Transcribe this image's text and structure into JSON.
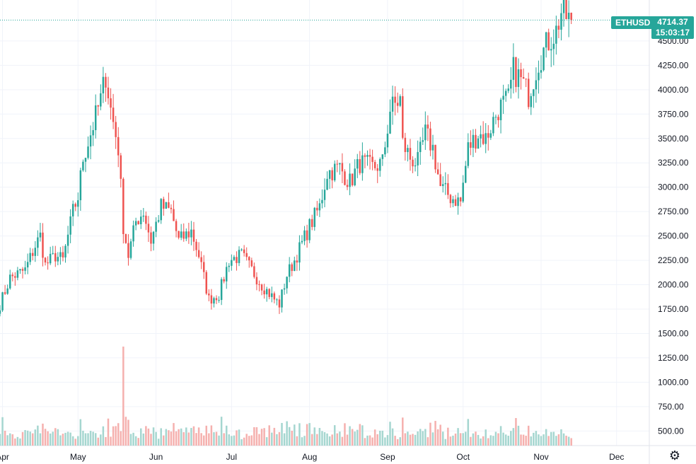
{
  "chart_data": {
    "type": "candlestick",
    "symbol": "ETHUSD",
    "last_price": "4714.37",
    "countdown": "15:03:17",
    "y_ticks": [
      "4500.00",
      "4250.00",
      "4000.00",
      "3750.00",
      "3500.00",
      "3250.00",
      "3000.00",
      "2750.00",
      "2500.00",
      "2250.00",
      "2000.00",
      "1750.00",
      "1500.00",
      "1250.00",
      "1000.00",
      "750.00",
      "500.00"
    ],
    "y_range": [
      350,
      4920
    ],
    "x_ticks": [
      "Apr",
      "May",
      "Jun",
      "Jul",
      "Aug",
      "Sep",
      "Oct",
      "Nov",
      "Dec"
    ],
    "start_date": "2021-03-31",
    "end_date": "2021-11-13",
    "x_range_dates": [
      "2021-03-31",
      "2021-12-14"
    ],
    "up_color": "#26a69a",
    "down_color": "#ef5350",
    "anchors": [
      [
        "2021-03-31",
        1800
      ],
      [
        "2021-04-04",
        2070
      ],
      [
        "2021-04-10",
        2150
      ],
      [
        "2021-04-14",
        2400
      ],
      [
        "2021-04-16",
        2500
      ],
      [
        "2021-04-18",
        2200
      ],
      [
        "2021-04-22",
        2300
      ],
      [
        "2021-04-25",
        2250
      ],
      [
        "2021-04-29",
        2750
      ],
      [
        "2021-05-01",
        2900
      ],
      [
        "2021-05-03",
        3300
      ],
      [
        "2021-05-06",
        3550
      ],
      [
        "2021-05-10",
        3900
      ],
      [
        "2021-05-12",
        4150
      ],
      [
        "2021-05-14",
        3800
      ],
      [
        "2021-05-17",
        3400
      ],
      [
        "2021-05-19",
        2600
      ],
      [
        "2021-05-21",
        2300
      ],
      [
        "2021-05-24",
        2650
      ],
      [
        "2021-05-27",
        2750
      ],
      [
        "2021-05-30",
        2450
      ],
      [
        "2021-06-03",
        2800
      ],
      [
        "2021-06-07",
        2750
      ],
      [
        "2021-06-10",
        2450
      ],
      [
        "2021-06-15",
        2550
      ],
      [
        "2021-06-18",
        2300
      ],
      [
        "2021-06-22",
        1850
      ],
      [
        "2021-06-26",
        1900
      ],
      [
        "2021-06-30",
        2250
      ],
      [
        "2021-07-05",
        2300
      ],
      [
        "2021-07-09",
        2150
      ],
      [
        "2021-07-13",
        2000
      ],
      [
        "2021-07-18",
        1850
      ],
      [
        "2021-07-20",
        1800
      ],
      [
        "2021-07-23",
        2100
      ],
      [
        "2021-07-26",
        2250
      ],
      [
        "2021-08-01",
        2600
      ],
      [
        "2021-08-05",
        2800
      ],
      [
        "2021-08-08",
        3150
      ],
      [
        "2021-08-13",
        3200
      ],
      [
        "2021-08-17",
        3050
      ],
      [
        "2021-08-21",
        3250
      ],
      [
        "2021-08-26",
        3200
      ],
      [
        "2021-08-30",
        3250
      ],
      [
        "2021-09-02",
        3800
      ],
      [
        "2021-09-06",
        3900
      ],
      [
        "2021-09-07",
        3450
      ],
      [
        "2021-09-10",
        3300
      ],
      [
        "2021-09-13",
        3250
      ],
      [
        "2021-09-16",
        3550
      ],
      [
        "2021-09-19",
        3400
      ],
      [
        "2021-09-22",
        3000
      ],
      [
        "2021-09-26",
        2900
      ],
      [
        "2021-09-30",
        2850
      ],
      [
        "2021-10-03",
        3400
      ],
      [
        "2021-10-07",
        3550
      ],
      [
        "2021-10-10",
        3500
      ],
      [
        "2021-10-15",
        3800
      ],
      [
        "2021-10-19",
        3900
      ],
      [
        "2021-10-21",
        4200
      ],
      [
        "2021-10-24",
        4100
      ],
      [
        "2021-10-27",
        3950
      ],
      [
        "2021-10-31",
        4300
      ],
      [
        "2021-11-04",
        4500
      ],
      [
        "2021-11-07",
        4600
      ],
      [
        "2021-11-09",
        4800
      ],
      [
        "2021-11-11",
        4750
      ],
      [
        "2021-11-13",
        4714
      ]
    ],
    "volume_spikes": [
      [
        "2021-05-19",
        3.0
      ],
      [
        "2021-05-20",
        2.4
      ],
      [
        "2021-05-13",
        1.6
      ],
      [
        "2021-06-21",
        1.3
      ],
      [
        "2021-07-31",
        1.1
      ],
      [
        "2021-09-07",
        1.4
      ],
      [
        "2021-09-21",
        1.3
      ]
    ]
  }
}
